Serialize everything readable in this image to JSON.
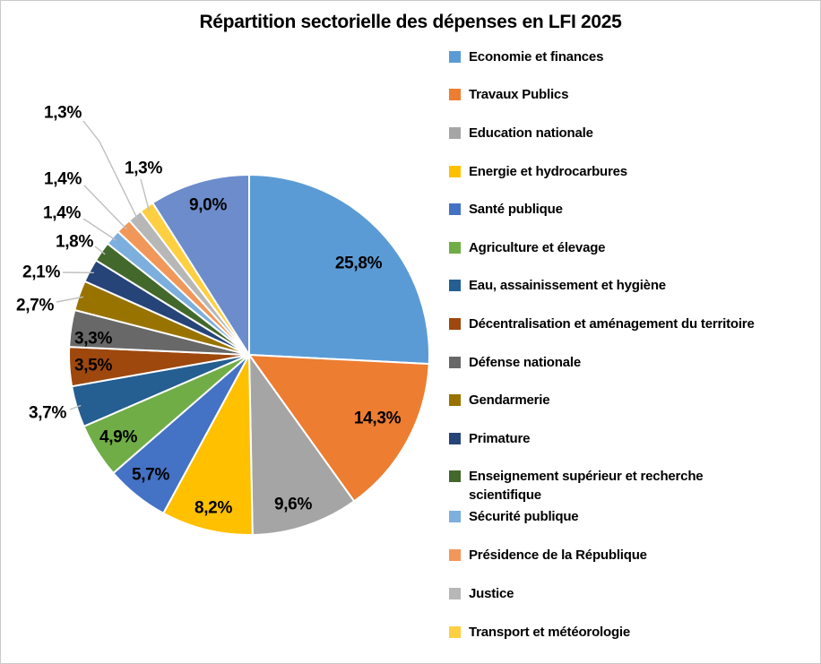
{
  "chart_data": {
    "type": "pie",
    "title": "Répartition sectorielle des dépenses en LFI 2025",
    "unit": "%",
    "decimal_separator": ",",
    "legend_position": "right",
    "start_angle_deg": 0,
    "direction": "clockwise",
    "slices": [
      {
        "name": "Economie et finances",
        "value": 25.8,
        "label": "25,8%",
        "color": "#5B9BD5",
        "in_legend": true
      },
      {
        "name": "Travaux Publics",
        "value": 14.3,
        "label": "14,3%",
        "color": "#ED7D31",
        "in_legend": true
      },
      {
        "name": "Education nationale",
        "value": 9.6,
        "label": "9,6%",
        "color": "#A5A5A5",
        "in_legend": true
      },
      {
        "name": "Energie et hydrocarbures",
        "value": 8.2,
        "label": "8,2%",
        "color": "#FFC000",
        "in_legend": true
      },
      {
        "name": "Santé publique",
        "value": 5.7,
        "label": "5,7%",
        "color": "#4472C4",
        "in_legend": true
      },
      {
        "name": "Agriculture et élevage",
        "value": 4.9,
        "label": "4,9%",
        "color": "#70AD47",
        "in_legend": true
      },
      {
        "name": "Eau, assainissement et hygiène",
        "value": 3.7,
        "label": "3,7%",
        "color": "#255E91",
        "in_legend": true
      },
      {
        "name": "Décentralisation et aménagement du territoire",
        "value": 3.5,
        "label": "3,5%",
        "color": "#9E480E",
        "in_legend": true
      },
      {
        "name": "Défense nationale",
        "value": 3.3,
        "label": "3,3%",
        "color": "#686868",
        "in_legend": true
      },
      {
        "name": "Gendarmerie",
        "value": 2.7,
        "label": "2,7%",
        "color": "#997300",
        "in_legend": true
      },
      {
        "name": "Primature",
        "value": 2.1,
        "label": "2,1%",
        "color": "#264478",
        "in_legend": true
      },
      {
        "name": "Enseignement supérieur et recherche scientifique",
        "value": 1.8,
        "label": "1,8%",
        "color": "#43682B",
        "in_legend": true
      },
      {
        "name": "Sécurité publique",
        "value": 1.4,
        "label": "1,4%",
        "color": "#7CAFDD",
        "in_legend": true
      },
      {
        "name": "Présidence de la République",
        "value": 1.4,
        "label": "1,4%",
        "color": "#F1975A",
        "in_legend": true
      },
      {
        "name": "Justice",
        "value": 1.3,
        "label": "1,3%",
        "color": "#B7B7B7",
        "in_legend": true
      },
      {
        "name": "Transport et météorologie",
        "value": 1.3,
        "label": "1,3%",
        "color": "#FFCF42",
        "in_legend": true
      },
      {
        "name": "",
        "value": 9.0,
        "label": "9,0%",
        "color": "#6C8CCB",
        "in_legend": false
      }
    ],
    "leader_line_color": "#BFBFBF"
  }
}
